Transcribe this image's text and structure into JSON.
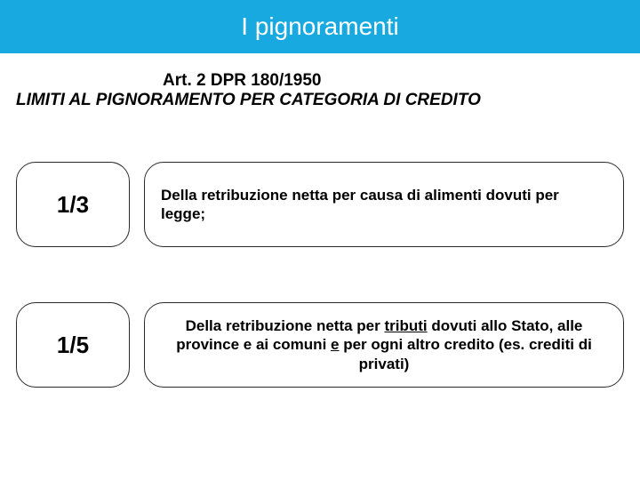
{
  "header": {
    "title": "I pignoramenti",
    "bg_color": "#19a9e1",
    "text_color": "#ffffff"
  },
  "subhead": {
    "line1": "Art. 2 DPR 180/1950",
    "line2": "LIMITI AL PIGNORAMENTO PER CATEGORIA DI CREDITO",
    "text_color": "#000000"
  },
  "rows": [
    {
      "fraction": "1/3",
      "desc_pre": "Della retribuzione netta per causa di alimenti dovuti per legge;",
      "align": "left"
    },
    {
      "fraction": "1/5",
      "desc_pre": "Della retribuzione netta per ",
      "u1": "tributi",
      "desc_mid": " dovuti allo Stato, alle province e ai comuni ",
      "u2": "e",
      "desc_post": " per ogni altro credito (es. crediti di privati)",
      "align": "center"
    }
  ],
  "style": {
    "pill_border": "#2a2a2a",
    "body_bg": "#ffffff",
    "frac_fontsize": 26,
    "desc_fontsize": 17
  }
}
